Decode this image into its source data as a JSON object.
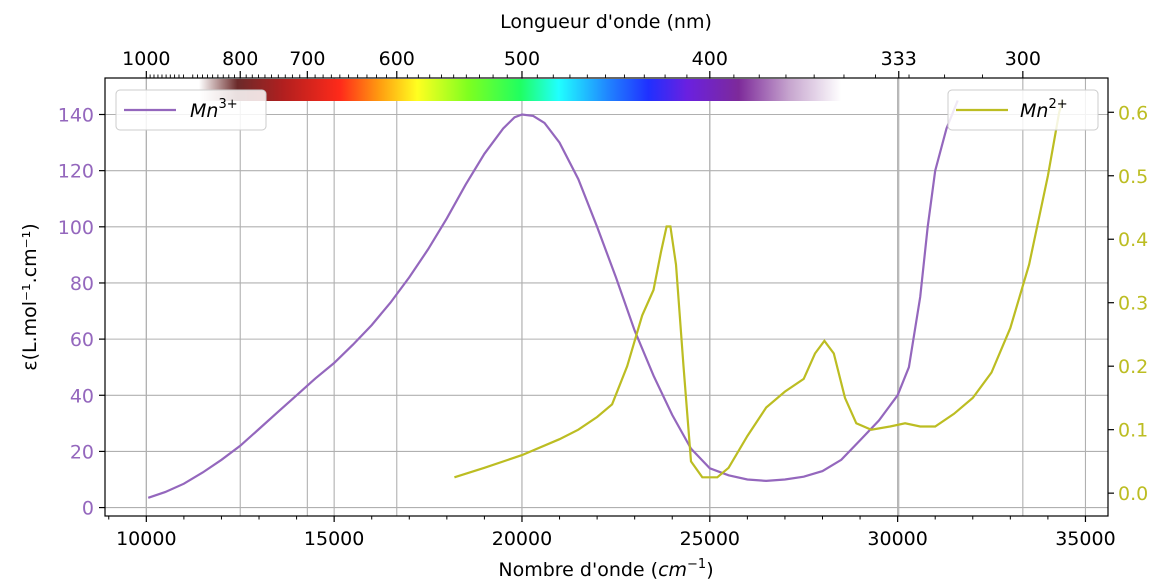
{
  "chart_data": {
    "type": "line",
    "xlabel": "Nombre d'onde (",
    "xlabel_unit": "cm",
    "xlabel_exp": "−1",
    "xlabel_end": ")",
    "top_axis_label": "Longueur d'onde (nm)",
    "top_ticks": [
      {
        "label": "1000",
        "value": 10000
      },
      {
        "label": "800",
        "value": 12500
      },
      {
        "label": "700",
        "value": 14286
      },
      {
        "label": "600",
        "value": 16667
      },
      {
        "label": "500",
        "value": 20000
      },
      {
        "label": "400",
        "value": 25000
      },
      {
        "label": "333",
        "value": 30030
      },
      {
        "label": "300",
        "value": 33333
      }
    ],
    "ylabel_left": "ε(L.mol⁻¹.cm⁻¹)",
    "xlim": [
      8900,
      35600
    ],
    "x_ticks": [
      10000,
      15000,
      20000,
      25000,
      30000,
      35000
    ],
    "x_tick_labels": [
      "10000",
      "15000",
      "20000",
      "25000",
      "30000",
      "35000"
    ],
    "ylim_left": [
      -3,
      153
    ],
    "y_left_ticks": [
      0,
      20,
      40,
      60,
      80,
      100,
      120,
      140
    ],
    "y_left_tick_labels": [
      "0",
      "20",
      "40",
      "60",
      "80",
      "100",
      "120",
      "140"
    ],
    "ylim_right": [
      -0.036,
      0.654
    ],
    "y_right_ticks": [
      0.0,
      0.1,
      0.2,
      0.3,
      0.4,
      0.5,
      0.6
    ],
    "y_right_tick_labels": [
      "0.0",
      "0.1",
      "0.2",
      "0.3",
      "0.4",
      "0.5",
      "0.6"
    ],
    "grid": true,
    "spectrum_bar": {
      "from_wavenumber": 11400,
      "to_wavenumber": 28500
    },
    "colors": {
      "mn3": "#9467bd",
      "mn2": "#bcbd22",
      "grid": "#b0b0b0",
      "axis": "#000000"
    },
    "series": [
      {
        "name": "Mn",
        "name_sup": "3+",
        "axis": "left",
        "legend_position": "top-left",
        "points": [
          [
            10050,
            3.5
          ],
          [
            10500,
            5.5
          ],
          [
            11000,
            8.5
          ],
          [
            11500,
            12.5
          ],
          [
            12000,
            17
          ],
          [
            12500,
            22
          ],
          [
            13000,
            28
          ],
          [
            13500,
            34
          ],
          [
            14000,
            40
          ],
          [
            14500,
            46
          ],
          [
            15000,
            51.5
          ],
          [
            15500,
            58
          ],
          [
            16000,
            65
          ],
          [
            16500,
            73
          ],
          [
            17000,
            82
          ],
          [
            17500,
            92
          ],
          [
            18000,
            103
          ],
          [
            18500,
            115
          ],
          [
            19000,
            126
          ],
          [
            19500,
            135
          ],
          [
            19800,
            139
          ],
          [
            20000,
            140
          ],
          [
            20300,
            139.5
          ],
          [
            20600,
            137
          ],
          [
            21000,
            130
          ],
          [
            21500,
            117
          ],
          [
            22000,
            100
          ],
          [
            22500,
            82
          ],
          [
            23000,
            63
          ],
          [
            23500,
            47
          ],
          [
            24000,
            33
          ],
          [
            24500,
            21
          ],
          [
            25000,
            14
          ],
          [
            25500,
            11.5
          ],
          [
            26000,
            10
          ],
          [
            26500,
            9.5
          ],
          [
            27000,
            10
          ],
          [
            27500,
            11
          ],
          [
            28000,
            13
          ],
          [
            28500,
            17
          ],
          [
            29000,
            24
          ],
          [
            29500,
            31
          ],
          [
            30000,
            40
          ],
          [
            30300,
            50
          ],
          [
            30600,
            75
          ],
          [
            30800,
            100
          ],
          [
            31000,
            120
          ],
          [
            31300,
            135
          ],
          [
            31600,
            145
          ]
        ]
      },
      {
        "name": "Mn",
        "name_sup": "2+",
        "axis": "right",
        "legend_position": "top-right",
        "points": [
          [
            18200,
            0.025
          ],
          [
            19000,
            0.04
          ],
          [
            20000,
            0.06
          ],
          [
            21000,
            0.085
          ],
          [
            21500,
            0.1
          ],
          [
            22000,
            0.12
          ],
          [
            22400,
            0.14
          ],
          [
            22800,
            0.2
          ],
          [
            23200,
            0.28
          ],
          [
            23500,
            0.32
          ],
          [
            23700,
            0.38
          ],
          [
            23850,
            0.42
          ],
          [
            23950,
            0.42
          ],
          [
            24100,
            0.36
          ],
          [
            24300,
            0.2
          ],
          [
            24500,
            0.05
          ],
          [
            24800,
            0.025
          ],
          [
            25200,
            0.025
          ],
          [
            25500,
            0.04
          ],
          [
            26000,
            0.09
          ],
          [
            26500,
            0.135
          ],
          [
            27000,
            0.16
          ],
          [
            27500,
            0.18
          ],
          [
            27800,
            0.22
          ],
          [
            28050,
            0.24
          ],
          [
            28300,
            0.22
          ],
          [
            28600,
            0.15
          ],
          [
            28900,
            0.11
          ],
          [
            29300,
            0.1
          ],
          [
            29800,
            0.105
          ],
          [
            30200,
            0.11
          ],
          [
            30600,
            0.105
          ],
          [
            31000,
            0.105
          ],
          [
            31500,
            0.125
          ],
          [
            32000,
            0.15
          ],
          [
            32500,
            0.19
          ],
          [
            33000,
            0.26
          ],
          [
            33500,
            0.36
          ],
          [
            34000,
            0.5
          ],
          [
            34300,
            0.6
          ],
          [
            34400,
            0.62
          ]
        ]
      }
    ]
  }
}
